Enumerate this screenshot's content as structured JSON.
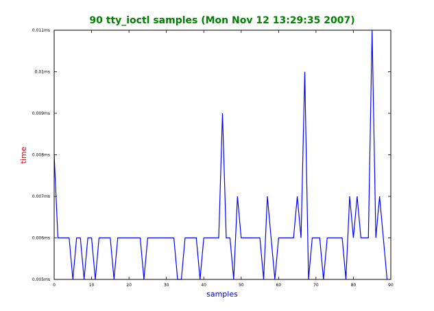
{
  "chart_data": {
    "type": "line",
    "title": "90 tty_ioctl samples (Mon Nov 12 13:29:35 2007)",
    "xlabel": "samples",
    "ylabel": "time",
    "xlim": [
      0,
      90
    ],
    "ylim": [
      0.005,
      0.011
    ],
    "x_ticks": [
      0,
      10,
      20,
      30,
      40,
      50,
      60,
      70,
      80,
      90
    ],
    "x_tick_labels": [
      "0",
      "10",
      "20",
      "30",
      "40",
      "50",
      "60",
      "70",
      "80",
      "90"
    ],
    "y_ticks": [
      0.005,
      0.006,
      0.007,
      0.008,
      0.009,
      0.01,
      0.011
    ],
    "y_tick_labels": [
      "0.005ms",
      "0.006ms",
      "0.007ms",
      "0.008ms",
      "0.009ms",
      "0.01ms",
      "0.011ms"
    ],
    "grid": false,
    "colors": {
      "title": "#008000",
      "xlabel": "#0000cc",
      "ylabel": "#cc0000",
      "line": "#0000ff"
    },
    "series": [
      {
        "x": [
          0,
          1,
          2,
          3,
          4,
          5,
          6,
          7,
          8,
          9,
          10,
          11,
          12,
          13,
          14,
          15,
          16,
          17,
          18,
          19,
          20,
          21,
          22,
          23,
          24,
          25,
          26,
          27,
          28,
          29,
          30,
          31,
          32,
          33,
          34,
          35,
          36,
          37,
          38,
          39,
          40,
          41,
          42,
          43,
          44,
          45,
          46,
          47,
          48,
          49,
          50,
          51,
          52,
          53,
          54,
          55,
          56,
          57,
          58,
          59,
          60,
          61,
          62,
          63,
          64,
          65,
          66,
          67,
          68,
          69,
          70,
          71,
          72,
          73,
          74,
          75,
          76,
          77,
          78,
          79,
          80,
          81,
          82,
          83,
          84,
          85,
          86,
          87,
          88,
          89
        ],
        "values": [
          0.008,
          0.006,
          0.006,
          0.006,
          0.006,
          0.005,
          0.006,
          0.006,
          0.005,
          0.006,
          0.006,
          0.005,
          0.006,
          0.006,
          0.006,
          0.006,
          0.005,
          0.006,
          0.006,
          0.006,
          0.006,
          0.006,
          0.006,
          0.006,
          0.005,
          0.006,
          0.006,
          0.006,
          0.006,
          0.006,
          0.006,
          0.006,
          0.006,
          0.005,
          0.005,
          0.006,
          0.006,
          0.006,
          0.006,
          0.005,
          0.006,
          0.006,
          0.006,
          0.006,
          0.006,
          0.009,
          0.006,
          0.006,
          0.005,
          0.007,
          0.006,
          0.006,
          0.006,
          0.006,
          0.006,
          0.006,
          0.005,
          0.007,
          0.006,
          0.005,
          0.006,
          0.006,
          0.006,
          0.006,
          0.006,
          0.007,
          0.006,
          0.01,
          0.005,
          0.006,
          0.006,
          0.006,
          0.005,
          0.006,
          0.006,
          0.006,
          0.006,
          0.006,
          0.005,
          0.007,
          0.006,
          0.007,
          0.006,
          0.006,
          0.006,
          0.011,
          0.006,
          0.007,
          0.006,
          0.005
        ]
      }
    ]
  }
}
